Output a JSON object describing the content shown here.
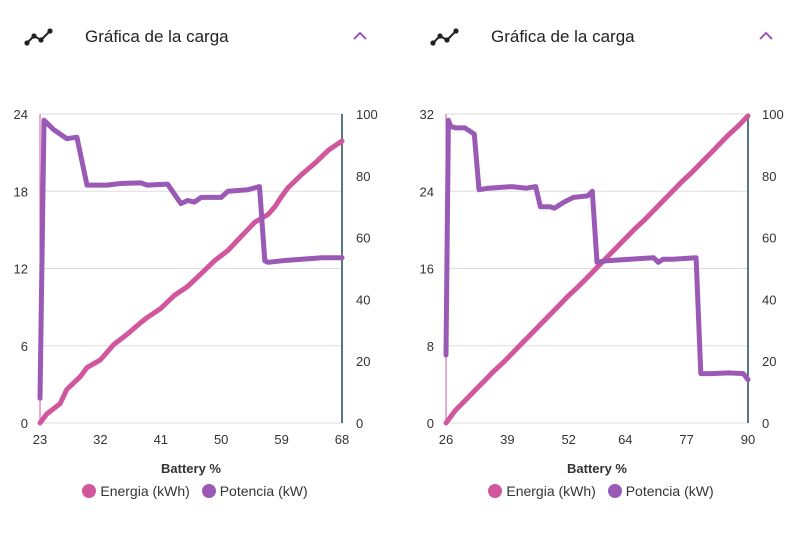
{
  "panels": [
    {
      "title": "Gráfica de la carga",
      "icon": "line-chart-icon",
      "toggle_icon": "chevron-up-icon"
    },
    {
      "title": "Gráfica de la carga",
      "icon": "line-chart-icon",
      "toggle_icon": "chevron-up-icon"
    }
  ],
  "colors": {
    "energy": "#d0579e",
    "power": "#9b59b6",
    "grid": "#dddddd",
    "axis_right": "#1e4a52",
    "toggle": "#9b59b6"
  },
  "chart_data": [
    {
      "type": "line",
      "xlabel": "Battery %",
      "x_ticks": [
        "23",
        "32",
        "41",
        "50",
        "59",
        "68"
      ],
      "xlim": [
        23,
        68
      ],
      "y_left_ticks": [
        "0",
        "6",
        "12",
        "18",
        "24"
      ],
      "ylim_left": [
        0,
        24
      ],
      "y_right_ticks": [
        "0",
        "20",
        "40",
        "60",
        "80",
        "100"
      ],
      "ylim_right": [
        0,
        100
      ],
      "legend_position": "bottom",
      "series": [
        {
          "name": "Energia (kWh)",
          "axis": "left",
          "x": [
            23,
            24,
            26,
            27,
            29,
            30,
            32,
            34,
            36,
            38,
            39,
            41,
            43,
            45,
            47,
            49,
            50,
            51,
            53,
            55,
            57,
            58,
            59,
            60,
            62,
            64,
            66,
            68
          ],
          "y": [
            0,
            0.7,
            1.5,
            2.6,
            3.6,
            4.3,
            4.9,
            6.1,
            6.9,
            7.8,
            8.2,
            8.9,
            9.9,
            10.6,
            11.6,
            12.6,
            13.0,
            13.4,
            14.5,
            15.6,
            16.2,
            16.8,
            17.6,
            18.3,
            19.3,
            20.2,
            21.2,
            21.9
          ]
        },
        {
          "name": "Potencia (kW)",
          "axis": "right",
          "x": [
            23,
            23.6,
            25,
            27,
            28.5,
            30,
            33,
            35,
            38,
            39,
            42,
            44,
            45,
            46,
            47,
            50,
            51,
            54,
            55.7,
            56.5,
            57,
            59,
            62,
            65,
            68
          ],
          "y": [
            8,
            98,
            95,
            92,
            92.5,
            77,
            77,
            77.5,
            77.7,
            77,
            77.3,
            71,
            72,
            71.5,
            73,
            73,
            75,
            75.5,
            76.5,
            52.5,
            52,
            52.5,
            53,
            53.5,
            53.5
          ]
        }
      ]
    },
    {
      "type": "line",
      "xlabel": "Battery %",
      "x_ticks": [
        "26",
        "39",
        "52",
        "64",
        "77",
        "90"
      ],
      "xlim": [
        26,
        90
      ],
      "y_left_ticks": [
        "0",
        "8",
        "16",
        "24",
        "32"
      ],
      "ylim_left": [
        0,
        32
      ],
      "y_right_ticks": [
        "0",
        "20",
        "40",
        "60",
        "80",
        "100"
      ],
      "ylim_right": [
        0,
        100
      ],
      "legend_position": "bottom",
      "series": [
        {
          "name": "Energia (kWh)",
          "axis": "left",
          "x": [
            26,
            28,
            30,
            32,
            34,
            36,
            38,
            40,
            42,
            44,
            46,
            48,
            50,
            52,
            54,
            56,
            58,
            60,
            62,
            64,
            66,
            68,
            70,
            72,
            74,
            76,
            78,
            80,
            82,
            84,
            86,
            88,
            90
          ],
          "y": [
            0,
            1.3,
            2.3,
            3.3,
            4.3,
            5.3,
            6.2,
            7.2,
            8.2,
            9.2,
            10.2,
            11.2,
            12.2,
            13.2,
            14.1,
            15.1,
            16.1,
            17.1,
            18.1,
            19.1,
            20.1,
            21.0,
            22.0,
            23.0,
            24.0,
            25.0,
            25.9,
            26.9,
            27.9,
            28.9,
            29.9,
            30.8,
            31.8
          ]
        },
        {
          "name": "Potencia (kW)",
          "axis": "right",
          "x": [
            26,
            26.5,
            27,
            28,
            30,
            32,
            33,
            35,
            38,
            40,
            43,
            45,
            46,
            48,
            49,
            51,
            53,
            56,
            57,
            58,
            60,
            65,
            70,
            71,
            72,
            74,
            79,
            80,
            82,
            86,
            89,
            90
          ],
          "y": [
            22,
            98,
            96,
            95.5,
            95.5,
            93.5,
            75.5,
            76,
            76.3,
            76.5,
            76,
            76.5,
            70,
            70,
            69.5,
            71.5,
            73,
            73.5,
            75,
            52,
            52.5,
            53,
            53.5,
            52,
            53,
            53,
            53.5,
            16,
            16,
            16.2,
            16,
            14
          ]
        }
      ]
    }
  ]
}
